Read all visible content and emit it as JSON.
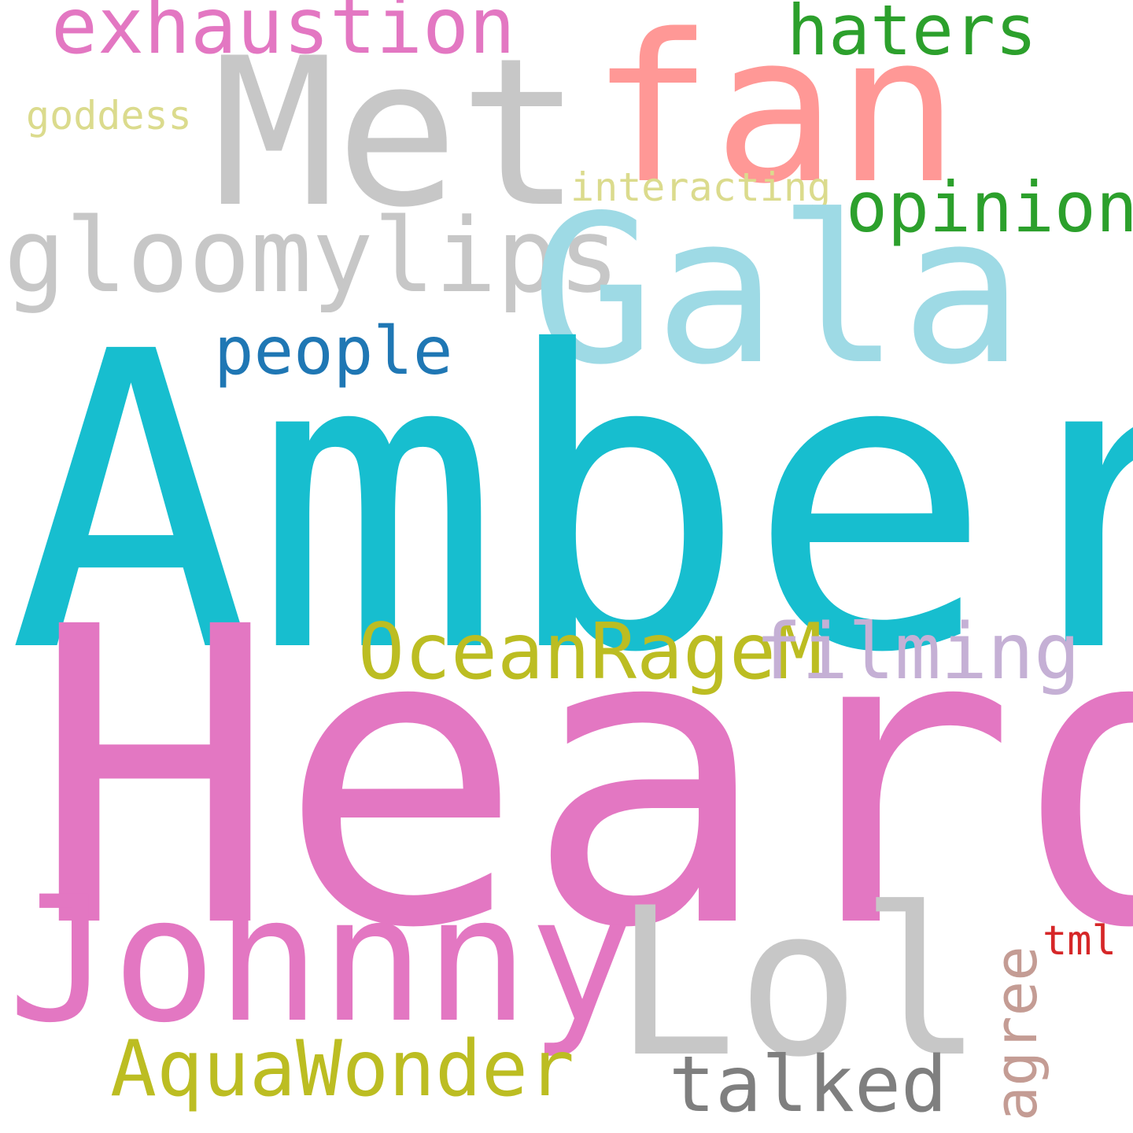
{
  "words": {
    "amber": {
      "text": "Amber",
      "color": "#17becf"
    },
    "heard": {
      "text": "Heard",
      "color": "#e377c2"
    },
    "met": {
      "text": "Met",
      "color": "#c7c7c7"
    },
    "fan": {
      "text": "fan",
      "color": "#ff9896"
    },
    "gala": {
      "text": "Gala",
      "color": "#9edae5"
    },
    "lol": {
      "text": "Lol",
      "color": "#c7c7c7"
    },
    "johnny": {
      "text": "Johnny",
      "color": "#e377c2"
    },
    "gloomylips": {
      "text": "gloomylips",
      "color": "#c7c7c7"
    },
    "oceanragem": {
      "text": "OceanRageM",
      "color": "#bcbd22"
    },
    "filming": {
      "text": "filming",
      "color": "#c5b0d5"
    },
    "aquawonder": {
      "text": "AquaWonder",
      "color": "#bcbd22"
    },
    "talked": {
      "text": "talked",
      "color": "#7f7f7f"
    },
    "exhaustion": {
      "text": "exhaustion",
      "color": "#e377c2"
    },
    "haters": {
      "text": "haters",
      "color": "#2ca02c"
    },
    "opinion": {
      "text": "opinion",
      "color": "#2ca02c"
    },
    "people": {
      "text": "people",
      "color": "#1f77b4"
    },
    "goddess": {
      "text": "goddess",
      "color": "#dbdb8d"
    },
    "interacting": {
      "text": "interacting",
      "color": "#dbdb8d"
    },
    "tml": {
      "text": "tml",
      "color": "#d62728"
    },
    "agree": {
      "text": "agree",
      "color": "#c49c94"
    }
  }
}
